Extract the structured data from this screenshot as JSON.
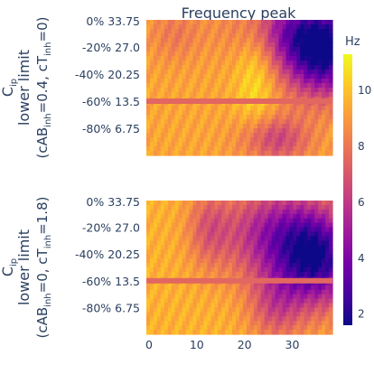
{
  "chart_data": {
    "type": "heatmap",
    "title": "Frequency peak",
    "colorbar": {
      "title": "Hz",
      "range": [
        1.6,
        11.3
      ],
      "ticks": [
        2,
        4,
        6,
        8,
        10
      ],
      "colorscale": [
        "#0d0887",
        "#46039f",
        "#7201a8",
        "#9c179e",
        "#bd3786",
        "#d8576b",
        "#ed7953",
        "#fb9f3a",
        "#fdca26",
        "#f0f921"
      ]
    },
    "x": {
      "range": [
        0,
        39
      ],
      "ticks": [
        0,
        10,
        20,
        30
      ]
    },
    "panels": [
      {
        "ylabel_lines": [
          "C<sub>ip</sub>",
          "lower limit",
          "(cAB<sub>inh</sub>=0.4, cT<sub>inh</sub>=0)"
        ],
        "ytick_labels": [
          "0% 33.75",
          "-20% 27.0",
          "-40% 20.25",
          "-60% 13.5",
          "-80% 6.75"
        ],
        "y_fracs": [
          1.0,
          0.8,
          0.6,
          0.4,
          0.2
        ],
        "stripe_frac": 0.4,
        "stripe_value": 7.5,
        "baseline_value": 9.3,
        "blobs": [
          {
            "x": 37,
            "y": 0.75,
            "sx": 6,
            "sy": 0.22,
            "amp": -7.5
          },
          {
            "x": 30,
            "y": 0.95,
            "sx": 8,
            "sy": 0.18,
            "amp": -3.5
          },
          {
            "x": 23,
            "y": 0.65,
            "sx": 3,
            "sy": 0.35,
            "amp": 1.6
          },
          {
            "x": 27,
            "y": 0.12,
            "sx": 5,
            "sy": 0.12,
            "amp": -3.0
          },
          {
            "x": 6,
            "y": 0.9,
            "sx": 4,
            "sy": 0.15,
            "amp": -1.2
          }
        ]
      },
      {
        "ylabel_lines": [
          "C<sub>ip</sub>",
          "lower limit",
          "(cAB<sub>inh</sub>=0, cT<sub>inh</sub>=1.8)"
        ],
        "ytick_labels": [
          "0% 33.75",
          "-20% 27.0",
          "-40% 20.25",
          "-60% 13.5",
          "-80% 6.75"
        ],
        "y_fracs": [
          1.0,
          0.8,
          0.6,
          0.4,
          0.2
        ],
        "stripe_frac": 0.4,
        "stripe_value": 7.5,
        "baseline_value": 9.6,
        "blobs": [
          {
            "x": 36,
            "y": 0.55,
            "sx": 6,
            "sy": 0.25,
            "amp": -6.5
          },
          {
            "x": 27,
            "y": 0.75,
            "sx": 8,
            "sy": 0.25,
            "amp": -4.5
          },
          {
            "x": 13,
            "y": 0.8,
            "sx": 3,
            "sy": 0.2,
            "amp": -2.0
          },
          {
            "x": 27,
            "y": 0.2,
            "sx": 4,
            "sy": 0.18,
            "amp": -2.5
          }
        ]
      }
    ]
  }
}
